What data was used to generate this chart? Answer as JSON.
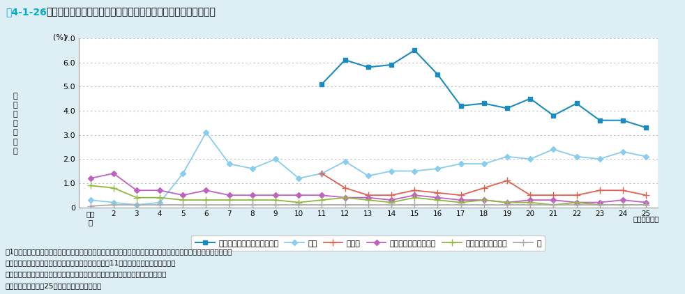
{
  "title_prefix": "図4-1-26",
  "title_main": "　地下水の水質汚濁に係る環境基準の超過率（概況調査）の推移",
  "ylabel": "環\n境\n基\n準\n超\n過\n率",
  "pct_label": "(%)",
  "xlabel_suffix": "（調査年度）",
  "years_label": [
    "平成\n元",
    "2",
    "3",
    "4",
    "5",
    "6",
    "7",
    "8",
    "9",
    "10",
    "11",
    "12",
    "13",
    "14",
    "15",
    "16",
    "17",
    "18",
    "19",
    "20",
    "21",
    "22",
    "23",
    "24",
    "25"
  ],
  "years": [
    1,
    2,
    3,
    4,
    5,
    6,
    7,
    8,
    9,
    10,
    11,
    12,
    13,
    14,
    15,
    16,
    17,
    18,
    19,
    20,
    21,
    22,
    23,
    24,
    25
  ],
  "series": {
    "硝酸性窒素及び亜硝酸性窒素": {
      "color": "#1a8bbf",
      "marker": "s",
      "markersize": 5,
      "linewidth": 1.5,
      "data": [
        null,
        null,
        null,
        null,
        null,
        null,
        null,
        null,
        null,
        null,
        5.1,
        6.1,
        5.8,
        5.9,
        6.5,
        5.5,
        4.2,
        4.3,
        4.1,
        4.5,
        3.8,
        4.3,
        3.6,
        3.6,
        3.3
      ]
    },
    "砒素": {
      "color": "#88ccee",
      "marker": "D",
      "markersize": 4,
      "linewidth": 1.3,
      "data": [
        0.3,
        0.2,
        0.1,
        0.2,
        1.4,
        3.1,
        1.8,
        1.6,
        2.0,
        1.2,
        1.4,
        1.9,
        1.3,
        1.5,
        1.5,
        1.6,
        1.8,
        1.8,
        2.1,
        2.0,
        2.4,
        2.1,
        2.0,
        2.3,
        2.1
      ]
    },
    "ふっ素": {
      "color": "#e06050",
      "marker": "+",
      "markersize": 7,
      "linewidth": 1.3,
      "data": [
        null,
        null,
        null,
        null,
        null,
        null,
        null,
        null,
        null,
        null,
        1.4,
        0.8,
        0.5,
        0.5,
        0.7,
        0.6,
        0.5,
        0.8,
        1.1,
        0.5,
        0.5,
        0.5,
        0.7,
        0.7,
        0.5
      ]
    },
    "テトラクロロエチレン": {
      "color": "#c060c0",
      "marker": "D",
      "markersize": 4,
      "linewidth": 1.3,
      "data": [
        1.2,
        1.4,
        0.7,
        0.7,
        0.5,
        0.7,
        0.5,
        0.5,
        0.5,
        0.5,
        0.5,
        0.4,
        0.4,
        0.3,
        0.5,
        0.4,
        0.3,
        0.3,
        0.2,
        0.3,
        0.3,
        0.2,
        0.2,
        0.3,
        0.2
      ]
    },
    "トリクロロエチレン": {
      "color": "#90b840",
      "marker": "+",
      "markersize": 7,
      "linewidth": 1.3,
      "data": [
        0.9,
        0.8,
        0.4,
        0.4,
        0.3,
        0.3,
        0.3,
        0.3,
        0.3,
        0.2,
        0.3,
        0.4,
        0.3,
        0.2,
        0.4,
        0.3,
        0.2,
        0.3,
        0.2,
        0.2,
        0.1,
        0.2,
        0.1,
        0.1,
        0.1
      ]
    },
    "鉛": {
      "color": "#aaaaaa",
      "marker": "+",
      "markersize": 7,
      "linewidth": 1.3,
      "data": [
        0.05,
        0.1,
        0.1,
        0.1,
        0.1,
        0.1,
        0.1,
        0.1,
        0.1,
        0.1,
        0.1,
        0.1,
        0.1,
        0.1,
        0.1,
        0.1,
        0.1,
        0.1,
        0.1,
        0.1,
        0.1,
        0.1,
        0.1,
        0.1,
        0.1
      ]
    }
  },
  "ylim": [
    0,
    7.0
  ],
  "yticks": [
    0.0,
    1.0,
    2.0,
    3.0,
    4.0,
    5.0,
    6.0,
    7.0
  ],
  "ytick_labels": [
    "0",
    "1.0",
    "2.0",
    "3.0",
    "4.0",
    "5.0",
    "6.0",
    "7.0"
  ],
  "background_color": "#ddeef5",
  "plot_background": "#ffffff",
  "grid_color": "#bbbbbb",
  "note1": "注1：超過数とは、測定当時の基準を超過した井戸の数であり、超過率とは、調査数に対する超過数の割合である。",
  "note2": "　２：硝酸性窒素及び亜硝酸性窒素、ふっ素は、平成11年に環境基準に追加された。",
  "note3": "　３：このグラフは環境基準超過本数が比較的多かった項目のみ対象としている。",
  "source": "資料：環境省「平成25年度地下水質測定結果」"
}
